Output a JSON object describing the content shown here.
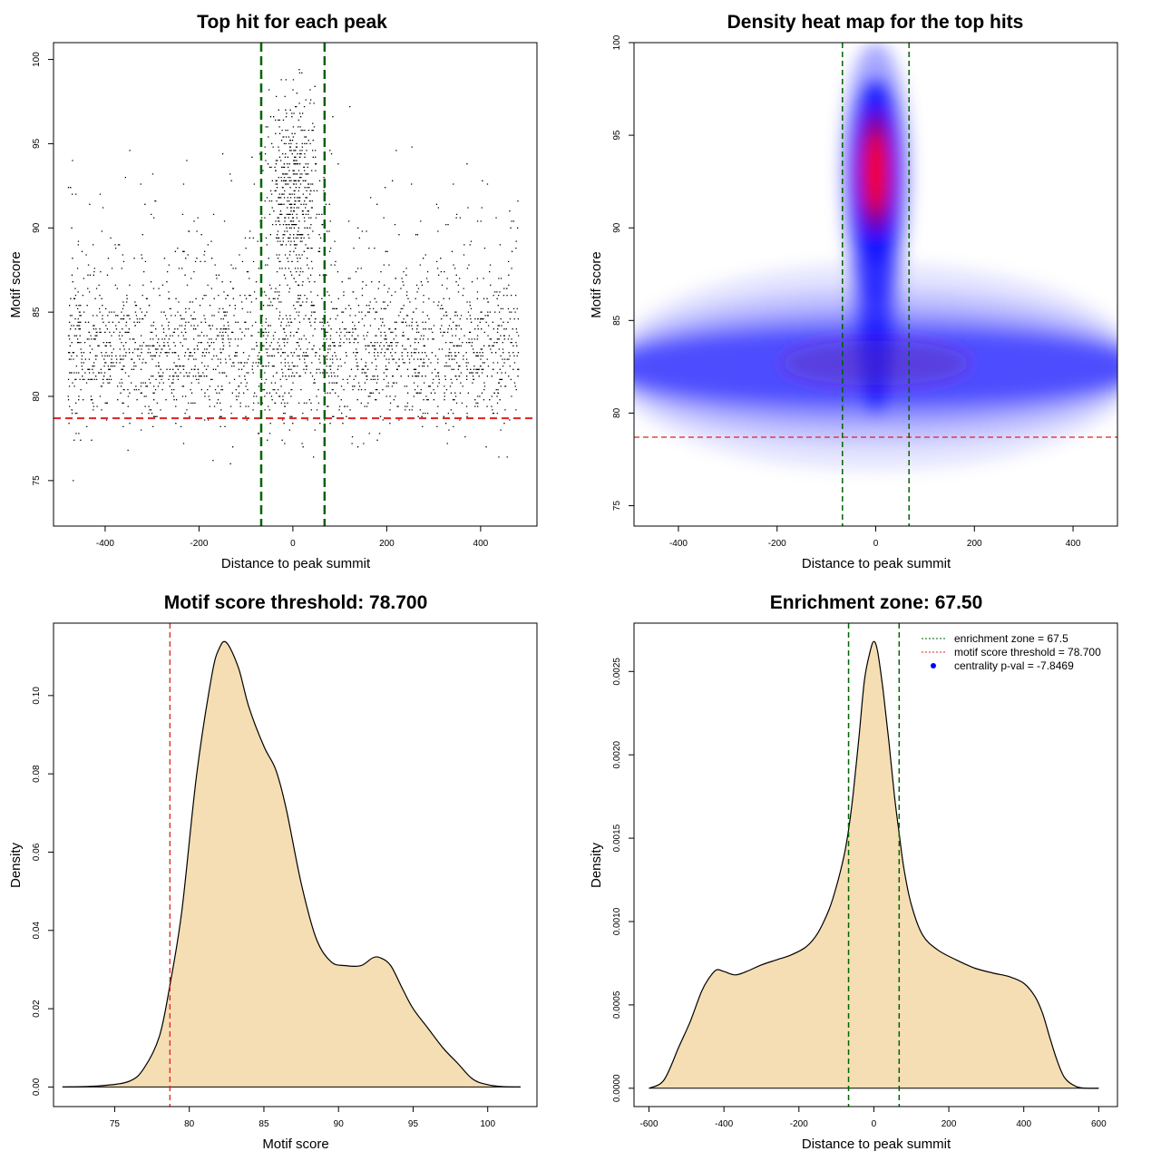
{
  "chart_data": [
    {
      "type": "scatter",
      "title": "Top hit for each peak",
      "xlabel": "Distance to peak summit",
      "ylabel": "Motif score",
      "xlim": [
        -510,
        520
      ],
      "ylim": [
        72.3,
        101
      ],
      "xticks": [
        -400,
        -200,
        0,
        200,
        400
      ],
      "yticks": [
        75,
        80,
        85,
        90,
        95,
        100
      ],
      "point_color": "#000000",
      "point_count_approx": 5200,
      "x_range_points": [
        -480,
        480
      ],
      "score_range_points": [
        73.7,
        100
      ],
      "threshold_line": {
        "y": 78.7,
        "color": "#dd2222",
        "style": "dashed"
      },
      "enrichment_lines": {
        "x": [
          -67.5,
          67.5
        ],
        "color": "#006400",
        "style": "dashed"
      },
      "grid": false
    },
    {
      "type": "heatmap",
      "title": "Density heat map for the top hits",
      "xlabel": "Distance to peak summit",
      "ylabel": "Motif score",
      "xlim": [
        -490,
        490
      ],
      "ylim": [
        73.9,
        100
      ],
      "xticks": [
        -400,
        -200,
        0,
        200,
        400
      ],
      "yticks": [
        75,
        80,
        85,
        90,
        95,
        100
      ],
      "colors": [
        "#ffffff",
        "#0000ff",
        "#ff0000"
      ],
      "peak_density_at": {
        "x": 0,
        "y": 93
      },
      "secondary_band": {
        "y": 82.5,
        "x_range": [
          -480,
          480
        ]
      },
      "threshold_line": {
        "y": 78.7,
        "color": "#dd2222",
        "style": "dashed"
      },
      "enrichment_lines": {
        "x": [
          -67.5,
          67.5
        ],
        "color": "#006400",
        "style": "dashed"
      },
      "grid": false
    },
    {
      "type": "area",
      "title": "Motif score threshold: 78.700",
      "xlabel": "Motif score",
      "ylabel": "Density",
      "xlim": [
        70.9,
        103.3
      ],
      "ylim": [
        -0.005,
        0.1185
      ],
      "xticks": [
        75,
        80,
        85,
        90,
        95,
        100
      ],
      "yticks": [
        0.0,
        0.02,
        0.04,
        0.06,
        0.08,
        0.1
      ],
      "ytick_labels": [
        "0.00",
        "0.02",
        "0.04",
        "0.06",
        "0.08",
        "0.10"
      ],
      "fill_color": "#f5deb3",
      "x": [
        71.5,
        74.0,
        76.0,
        77.0,
        78.0,
        78.7,
        79.5,
        80.5,
        81.5,
        82.0,
        82.5,
        83.3,
        84.0,
        85.0,
        85.8,
        86.5,
        87.5,
        88.5,
        89.5,
        90.5,
        91.5,
        92.3,
        92.8,
        93.5,
        94.3,
        95.0,
        96.0,
        97.0,
        98.0,
        99.0,
        100.0,
        101.0,
        102.2
      ],
      "y": [
        0.0,
        0.0003,
        0.0015,
        0.005,
        0.013,
        0.026,
        0.045,
        0.08,
        0.105,
        0.112,
        0.1135,
        0.107,
        0.097,
        0.087,
        0.081,
        0.071,
        0.052,
        0.038,
        0.032,
        0.031,
        0.031,
        0.033,
        0.033,
        0.031,
        0.025,
        0.02,
        0.015,
        0.01,
        0.006,
        0.002,
        0.0006,
        0.0001,
        0.0
      ],
      "threshold_line": {
        "x": 78.7,
        "color": "#dd2222",
        "style": "dashed"
      },
      "grid": false
    },
    {
      "type": "area",
      "title": "Enrichment zone: 67.50",
      "xlabel": "Distance to peak summit",
      "ylabel": "Density",
      "xlim": [
        -640,
        650
      ],
      "ylim": [
        -0.00011,
        0.00279
      ],
      "xticks": [
        -600,
        -400,
        -200,
        0,
        200,
        400,
        600
      ],
      "yticks": [
        0.0,
        0.0005,
        0.001,
        0.0015,
        0.002,
        0.0025
      ],
      "ytick_labels": [
        "0.0000",
        "0.0005",
        "0.0010",
        "0.0015",
        "0.0020",
        "0.0025"
      ],
      "fill_color": "#f5deb3",
      "x": [
        -600,
        -560,
        -520,
        -490,
        -460,
        -440,
        -420,
        -400,
        -370,
        -340,
        -300,
        -260,
        -220,
        -180,
        -150,
        -120,
        -100,
        -80,
        -67.5,
        -55,
        -40,
        -25,
        -10,
        0,
        10,
        25,
        40,
        55,
        67.5,
        80,
        100,
        130,
        170,
        220,
        270,
        320,
        360,
        400,
        430,
        450,
        470,
        490,
        510,
        540,
        570,
        600
      ],
      "y": [
        0.0,
        5e-05,
        0.00025,
        0.0004,
        0.00058,
        0.00066,
        0.00071,
        0.0007,
        0.00068,
        0.0007,
        0.00074,
        0.00077,
        0.0008,
        0.00085,
        0.00093,
        0.00107,
        0.00121,
        0.00139,
        0.00155,
        0.00177,
        0.0021,
        0.00245,
        0.00262,
        0.00268,
        0.00262,
        0.00238,
        0.00208,
        0.00175,
        0.00153,
        0.00132,
        0.0011,
        0.00092,
        0.00083,
        0.00077,
        0.00072,
        0.00069,
        0.00067,
        0.00063,
        0.00055,
        0.00045,
        0.0003,
        0.00016,
        6e-05,
        1e-05,
        0.0,
        0.0
      ],
      "enrichment_lines": {
        "x": [
          -67.5,
          67.5
        ],
        "color": "#006400",
        "style": "dashed"
      },
      "legend": {
        "position": "top-right",
        "entries": [
          {
            "label": "enrichment zone = 67.5",
            "color": "#006400",
            "symbol": "dotted-line"
          },
          {
            "label": "motif score threshold = 78.700",
            "color": "#dd2222",
            "symbol": "dotted-line"
          },
          {
            "label": "centrality p-val = -7.8469",
            "color": "#0000ff",
            "symbol": "point"
          }
        ]
      },
      "grid": false
    }
  ]
}
